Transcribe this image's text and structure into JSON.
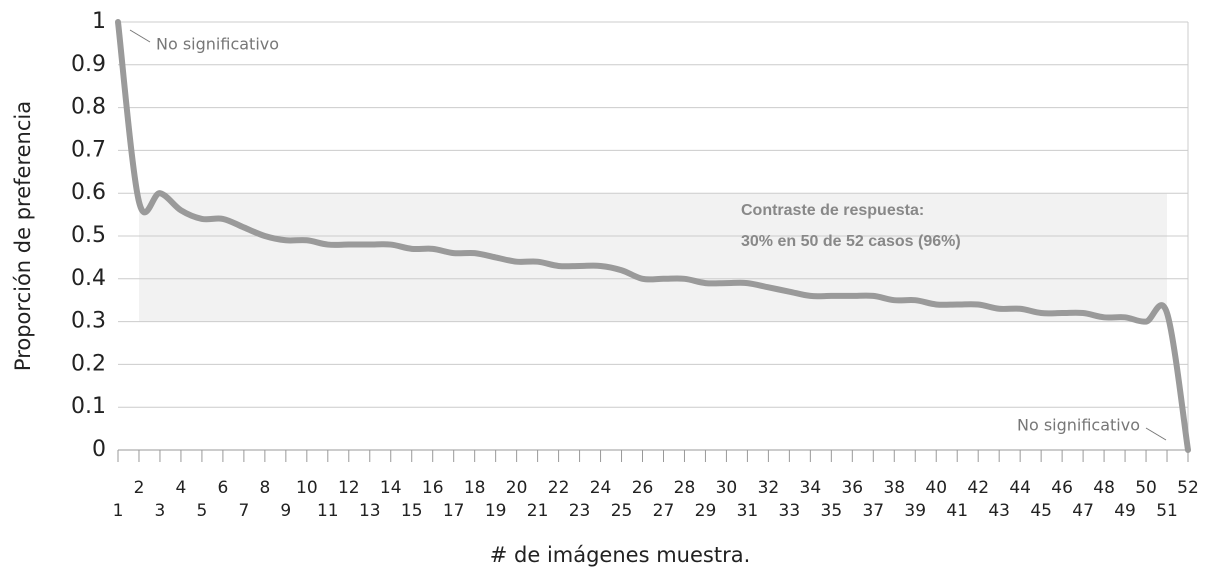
{
  "chart_data": {
    "type": "line",
    "x_label": "# de imágenes muestra.",
    "y_label": "Proporción de preferencia",
    "x": [
      1,
      2,
      3,
      4,
      5,
      6,
      7,
      8,
      9,
      10,
      11,
      12,
      13,
      14,
      15,
      16,
      17,
      18,
      19,
      20,
      21,
      22,
      23,
      24,
      25,
      26,
      27,
      28,
      29,
      30,
      31,
      32,
      33,
      34,
      35,
      36,
      37,
      38,
      39,
      40,
      41,
      42,
      43,
      44,
      45,
      46,
      47,
      48,
      49,
      50,
      51,
      52
    ],
    "series": [
      {
        "name": "Proporción de preferencia",
        "color": "#9a9a9a",
        "values": [
          1.0,
          0.58,
          0.6,
          0.56,
          0.54,
          0.54,
          0.52,
          0.5,
          0.49,
          0.49,
          0.48,
          0.48,
          0.48,
          0.48,
          0.47,
          0.47,
          0.46,
          0.46,
          0.45,
          0.44,
          0.44,
          0.43,
          0.43,
          0.43,
          0.42,
          0.4,
          0.4,
          0.4,
          0.39,
          0.39,
          0.39,
          0.38,
          0.37,
          0.36,
          0.36,
          0.36,
          0.36,
          0.35,
          0.35,
          0.34,
          0.34,
          0.34,
          0.33,
          0.33,
          0.32,
          0.32,
          0.32,
          0.31,
          0.31,
          0.3,
          0.32,
          0
        ]
      }
    ],
    "band": {
      "x": [
        2,
        51
      ],
      "y": [
        0.3,
        0.6
      ],
      "color": "#f2f2f2"
    },
    "annotations": [
      "No significativo",
      "No significativo",
      "Contraste de respuesta:",
      "30% en 50 de 52 casos (96%)"
    ],
    "xlim": [
      1,
      52
    ],
    "xticks": [
      1,
      2,
      3,
      4,
      5,
      6,
      7,
      8,
      9,
      10,
      11,
      12,
      13,
      14,
      15,
      16,
      17,
      18,
      19,
      20,
      21,
      22,
      23,
      24,
      25,
      26,
      27,
      28,
      29,
      30,
      31,
      32,
      33,
      34,
      35,
      36,
      37,
      38,
      39,
      40,
      41,
      42,
      43,
      44,
      45,
      46,
      47,
      48,
      49,
      50,
      51,
      52
    ],
    "ylim": [
      0,
      1
    ],
    "yticks": [
      0,
      0.1,
      0.2,
      0.3,
      0.4,
      0.5,
      0.6,
      0.7,
      0.8,
      0.9,
      1
    ],
    "grid": true
  }
}
